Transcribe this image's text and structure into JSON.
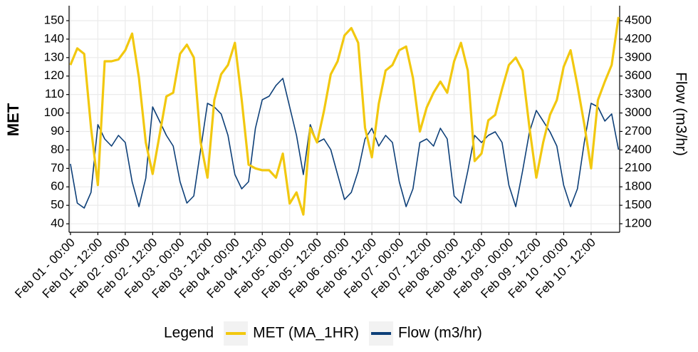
{
  "chart_data": {
    "type": "line",
    "y_label": "MET",
    "y2_label": "Flow (m3/hr)",
    "legend_title": "Legend",
    "legend": "bottom",
    "grid": true,
    "x": [
      0,
      3,
      6,
      9,
      12,
      15,
      18,
      21,
      24,
      27,
      30,
      33,
      36,
      39,
      42,
      45,
      48,
      51,
      54,
      57,
      60,
      63,
      66,
      69,
      72,
      75,
      78,
      81,
      84,
      87,
      90,
      93,
      96,
      99,
      102,
      105,
      108,
      111,
      114,
      117,
      120,
      123,
      126,
      129,
      132,
      135,
      138,
      141,
      144,
      147,
      150,
      153,
      156,
      159,
      162,
      165,
      168,
      171,
      174,
      177,
      180,
      183,
      186,
      189,
      192,
      195,
      198,
      201,
      204,
      207,
      210,
      213,
      216,
      219,
      222,
      225,
      228,
      231,
      234,
      237,
      240
    ],
    "xlim": [
      -0.6,
      240.5
    ],
    "xticks": [
      {
        "value": 0,
        "label": "Feb 01 - 00:00"
      },
      {
        "value": 12,
        "label": "Feb 01 - 12:00"
      },
      {
        "value": 24,
        "label": "Feb 02 - 00:00"
      },
      {
        "value": 36,
        "label": "Feb 02 - 12:00"
      },
      {
        "value": 48,
        "label": "Feb 03 - 00:00"
      },
      {
        "value": 60,
        "label": "Feb 03 - 12:00"
      },
      {
        "value": 72,
        "label": "Feb 04 - 00:00"
      },
      {
        "value": 84,
        "label": "Feb 04 - 12:00"
      },
      {
        "value": 96,
        "label": "Feb 05 - 00:00"
      },
      {
        "value": 108,
        "label": "Feb 05 - 12:00"
      },
      {
        "value": 120,
        "label": "Feb 06 - 00:00"
      },
      {
        "value": 132,
        "label": "Feb 06 - 12:00"
      },
      {
        "value": 144,
        "label": "Feb 07 - 00:00"
      },
      {
        "value": 156,
        "label": "Feb 07 - 12:00"
      },
      {
        "value": 168,
        "label": "Feb 08 - 00:00"
      },
      {
        "value": 180,
        "label": "Feb 08 - 12:00"
      },
      {
        "value": 192,
        "label": "Feb 09 - 00:00"
      },
      {
        "value": 204,
        "label": "Feb 09 - 12:00"
      },
      {
        "value": 216,
        "label": "Feb 10 - 00:00"
      },
      {
        "value": 228,
        "label": "Feb 10 - 12:00"
      }
    ],
    "ylim": [
      35.4,
      158.1
    ],
    "yticks": [
      40,
      50,
      60,
      70,
      80,
      90,
      100,
      110,
      120,
      130,
      140,
      150
    ],
    "y2lim": [
      1061,
      4743
    ],
    "y2ticks": [
      1200,
      1500,
      1800,
      2100,
      2400,
      2700,
      3000,
      3300,
      3600,
      3900,
      4200,
      4500
    ],
    "series": [
      {
        "name": "MET (MA_1HR)",
        "color": "#f2c80f",
        "axis": "y",
        "values": [
          126,
          135,
          132,
          92,
          61,
          128,
          128,
          129,
          134,
          143,
          119,
          84,
          67,
          88,
          109,
          111,
          132,
          137,
          130,
          84,
          65,
          107,
          121,
          126,
          138,
          107,
          72,
          70,
          69,
          69,
          65,
          78,
          51,
          57,
          45,
          92,
          84,
          101,
          121,
          128,
          142,
          146,
          138,
          92,
          76,
          105,
          123,
          126,
          134,
          136,
          119,
          90,
          103,
          111,
          117,
          111,
          128,
          138,
          123,
          74,
          78,
          96,
          99,
          113,
          126,
          130,
          123,
          92,
          65,
          84,
          99,
          107,
          125,
          134,
          115,
          94,
          70,
          107,
          117,
          126,
          152
        ]
      },
      {
        "name": "Flow (m3/hr)",
        "color": "#0d3f78",
        "axis": "y2",
        "values": [
          2173,
          1536,
          1455,
          1710,
          2810,
          2578,
          2462,
          2636,
          2520,
          1883,
          1478,
          1941,
          3099,
          2868,
          2636,
          2462,
          1883,
          1536,
          1652,
          2404,
          3157,
          3099,
          2984,
          2636,
          1999,
          1767,
          1883,
          2752,
          3215,
          3273,
          3447,
          3562,
          3099,
          2636,
          1999,
          2810,
          2520,
          2578,
          2404,
          1999,
          1594,
          1710,
          2057,
          2578,
          2752,
          2462,
          2636,
          2520,
          1883,
          1478,
          1767,
          2520,
          2578,
          2462,
          2752,
          2578,
          1652,
          1536,
          2057,
          2636,
          2520,
          2636,
          2694,
          2520,
          1825,
          1478,
          2057,
          2694,
          3041,
          2868,
          2694,
          2462,
          1825,
          1478,
          1767,
          2520,
          3157,
          3099,
          2868,
          2984,
          2404
        ]
      }
    ]
  }
}
